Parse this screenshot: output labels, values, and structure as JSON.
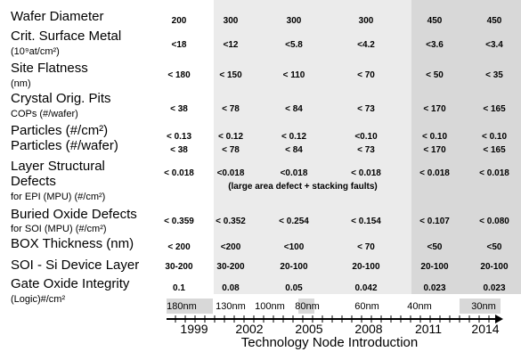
{
  "rows": [
    {
      "label": [
        "Wafer Diameter"
      ],
      "values": [
        "200",
        "300",
        "300",
        "300",
        "450",
        "450"
      ]
    },
    {
      "label": [
        "Crit. Surface Metal",
        "(10⁹at/cm²)"
      ],
      "values": [
        "<18",
        "<12",
        "<5.8",
        "<4.2",
        "<3.6",
        "<3.4"
      ]
    },
    {
      "label": [
        "Site Flatness",
        "(nm)"
      ],
      "values": [
        "< 180",
        "< 150",
        "< 110",
        "< 70",
        "< 50",
        "< 35"
      ]
    },
    {
      "label": [
        "Crystal Orig. Pits",
        "COPs (#/wafer)"
      ],
      "values": [
        "< 38",
        "< 78",
        "< 84",
        "< 73",
        "< 170",
        "< 165"
      ]
    },
    {
      "label": [
        "Particles (#/cm²)"
      ],
      "values": [
        "< 0.13",
        "< 0.12",
        "< 0.12",
        "<0.10",
        "< 0.10",
        "< 0.10"
      ]
    },
    {
      "label": [
        "Particles (#/wafer)"
      ],
      "values": [
        "< 38",
        "< 78",
        "< 84",
        "< 73",
        "< 170",
        "< 165"
      ]
    },
    {
      "label": [
        "Layer Structural",
        "Defects",
        "for EPI (MPU) (#/cm²)"
      ],
      "values": [
        "< 0.018",
        "<0.018",
        "<0.018",
        "< 0.018",
        "< 0.018",
        "< 0.018"
      ],
      "note": "(large area defect + stacking faults)"
    },
    {
      "label": [
        "Buried Oxide Defects",
        "for SOI (MPU) (#/cm²)"
      ],
      "values": [
        "< 0.359",
        "< 0.352",
        "< 0.254",
        "< 0.154",
        "< 0.107",
        "< 0.080"
      ]
    },
    {
      "label": [
        "BOX Thickness (nm)"
      ],
      "values": [
        "< 200",
        "<200",
        "<100",
        "< 70",
        "<50",
        "<50"
      ]
    },
    {
      "label": [
        "SOI - Si Device Layer"
      ],
      "values": [
        "30-200",
        "30-200",
        "20-100",
        "20-100",
        "20-100",
        "20-100"
      ]
    },
    {
      "label": [
        "Gate Oxide Integrity",
        "(Logic)#/cm²"
      ],
      "values": [
        "0.1",
        "0.08",
        "0.05",
        "0.042",
        "0.023",
        "0.023"
      ]
    }
  ],
  "timeline": {
    "nodes": [
      "180nm",
      "130nm",
      "100nm",
      "80nm",
      "60nm",
      "40nm",
      "30nm"
    ],
    "years": [
      1999,
      2002,
      2005,
      2008,
      2011,
      2014
    ],
    "title": "Technology Node Introduction"
  }
}
